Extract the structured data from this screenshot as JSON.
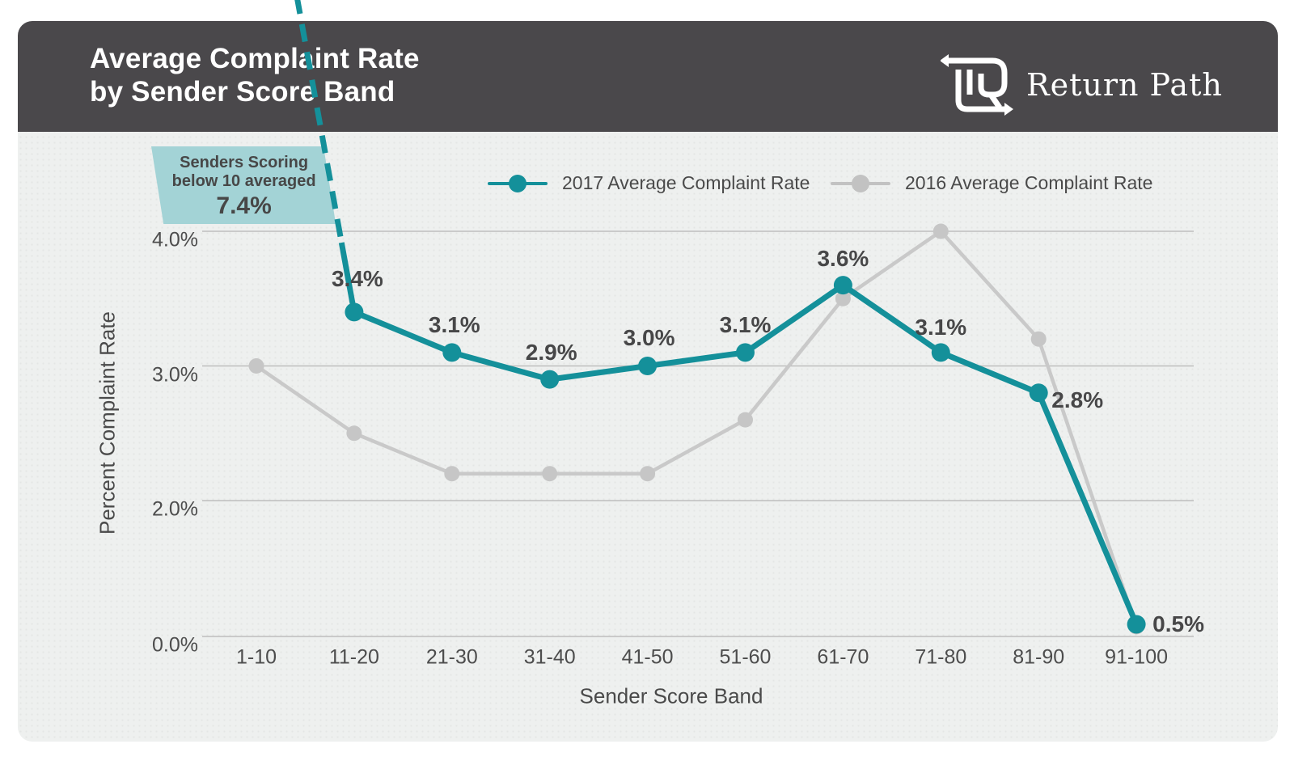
{
  "header": {
    "title_line1": "Average Complaint Rate",
    "title_line2": "by Sender Score Band",
    "logo_text": "Return Path"
  },
  "annotation": {
    "line1": "Senders Scoring",
    "line2": "below 10 averaged",
    "value": "7.4%"
  },
  "legend": {
    "item_2017": "2017 Average Complaint Rate",
    "item_2016": "2016 Average Complaint Rate"
  },
  "chart_data": {
    "type": "line",
    "title": "Average Complaint Rate by Sender Score Band",
    "xlabel": "Sender Score Band",
    "ylabel": "Percent Complaint Rate",
    "categories": [
      "1-10",
      "11-20",
      "21-30",
      "31-40",
      "41-50",
      "51-60",
      "61-70",
      "71-80",
      "81-90",
      "91-100"
    ],
    "y_ticks": [
      {
        "label": "4.0%",
        "value": 4.0
      },
      {
        "label": "3.0%",
        "value": 3.0
      },
      {
        "label": "2.0%",
        "value": 2.0
      },
      {
        "label": "0.0%",
        "value": 0.0
      }
    ],
    "ylim": [
      0,
      4.3
    ],
    "grid": true,
    "legend_position": "top",
    "series": [
      {
        "name": "2016 Average Complaint Rate",
        "color": "#c9c9c9",
        "values": [
          3.0,
          2.5,
          2.2,
          2.2,
          2.2,
          2.6,
          3.5,
          4.0,
          3.2,
          0.4
        ],
        "data_labels": [
          "",
          "",
          "",
          "",
          "",
          "",
          "",
          "",
          "",
          ""
        ]
      },
      {
        "name": "2017 Average Complaint Rate",
        "color": "#14909a",
        "values": [
          7.4,
          3.4,
          3.1,
          2.9,
          3.0,
          3.1,
          3.6,
          3.1,
          2.8,
          0.5
        ],
        "data_labels": [
          "",
          "3.4%",
          "3.1%",
          "2.9%",
          "3.0%",
          "3.1%",
          "3.6%",
          "3.1%",
          "2.8%",
          "0.5%"
        ],
        "note": "First band (1-10) value 7.4% is off-chart, shown by dashed line and annotation"
      }
    ]
  },
  "colors": {
    "teal": "#14909a",
    "teal_light": "#a3d3d6",
    "gray_series": "#c9c9c9",
    "gridline": "#bdbdbd",
    "header_bg": "#4a484b",
    "card_bg": "#eef0ef",
    "text_dark": "#4a4a4a"
  }
}
